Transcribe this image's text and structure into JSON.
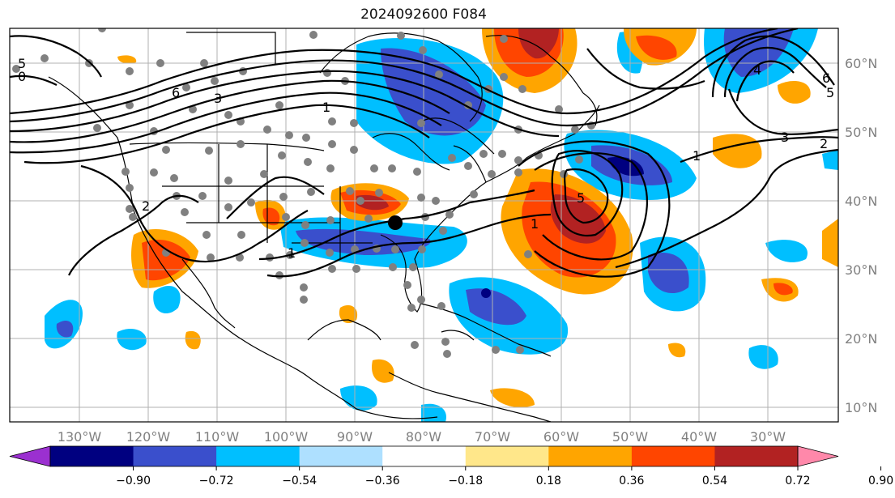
{
  "title": "2024092600 F084",
  "lon_labels": [
    "130°W",
    "120°W",
    "110°W",
    "100°W",
    "90°W",
    "80°W",
    "70°W",
    "60°W",
    "50°W",
    "40°W",
    "30°W"
  ],
  "lat_labels": [
    "60°N",
    "50°N",
    "40°N",
    "30°N",
    "20°N",
    "10°N"
  ],
  "colorbar": {
    "colors": [
      "#9b30d0",
      "#000080",
      "#3a4fcc",
      "#00bfff",
      "#aee0ff",
      "#ffffff",
      "#ffe78a",
      "#ffa500",
      "#ff4500",
      "#b22222",
      "#ff88aa"
    ],
    "tick_labels": [
      "−0.90",
      "−0.72",
      "−0.54",
      "−0.36",
      "−0.18",
      "0.18",
      "0.36",
      "0.54",
      "0.72",
      "0.90"
    ]
  },
  "contour_labels": [
    "5",
    "0",
    "6",
    "3",
    "1",
    "1",
    "5",
    "1",
    "6",
    "5",
    "3",
    "2",
    "1",
    "2",
    "4"
  ],
  "marker": "black dot near 85°W 37°N"
}
